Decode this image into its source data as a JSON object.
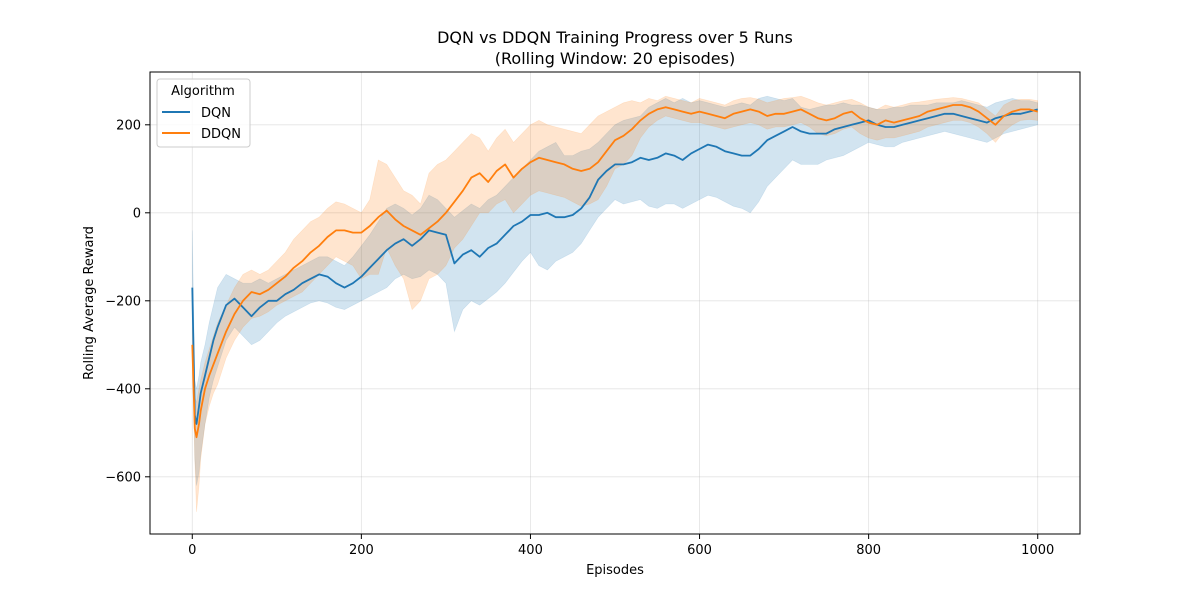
{
  "chart_data": {
    "type": "line",
    "title_line1": "DQN vs DDQN Training Progress over 5 Runs",
    "title_line2": "(Rolling Window: 20 episodes)",
    "xlabel": "Episodes",
    "ylabel": "Rolling Average Reward",
    "xlim": [
      -50,
      1050
    ],
    "ylim": [
      -730,
      320
    ],
    "xticks": [
      0,
      200,
      400,
      600,
      800,
      1000
    ],
    "yticks": [
      -600,
      -400,
      -200,
      0,
      200
    ],
    "xtick_labels": [
      "0",
      "200",
      "400",
      "600",
      "800",
      "1000"
    ],
    "ytick_labels": [
      "−600",
      "−400",
      "−200",
      "0",
      "200"
    ],
    "grid": true,
    "legend": {
      "title": "Algorithm",
      "placement": "top-left"
    },
    "series": [
      {
        "name": "DQN",
        "color": "#1f77b4",
        "x": [
          0,
          3,
          5,
          8,
          10,
          15,
          20,
          25,
          30,
          40,
          50,
          60,
          70,
          80,
          90,
          100,
          110,
          120,
          130,
          140,
          150,
          160,
          170,
          180,
          190,
          200,
          210,
          220,
          230,
          240,
          250,
          260,
          270,
          280,
          290,
          300,
          310,
          320,
          330,
          340,
          350,
          360,
          370,
          380,
          390,
          400,
          410,
          420,
          430,
          440,
          450,
          460,
          470,
          480,
          490,
          500,
          510,
          520,
          530,
          540,
          550,
          560,
          570,
          580,
          590,
          600,
          610,
          620,
          630,
          640,
          650,
          660,
          670,
          680,
          690,
          700,
          710,
          720,
          730,
          740,
          750,
          760,
          770,
          780,
          790,
          800,
          810,
          820,
          830,
          840,
          850,
          860,
          870,
          880,
          890,
          900,
          910,
          920,
          930,
          940,
          950,
          960,
          970,
          980,
          990,
          1000
        ],
        "y": [
          -170,
          -460,
          -480,
          -440,
          -410,
          -370,
          -330,
          -290,
          -260,
          -210,
          -195,
          -215,
          -235,
          -215,
          -200,
          -200,
          -185,
          -175,
          -160,
          -150,
          -140,
          -145,
          -160,
          -170,
          -160,
          -145,
          -125,
          -105,
          -85,
          -70,
          -60,
          -75,
          -60,
          -40,
          -45,
          -50,
          -115,
          -95,
          -85,
          -100,
          -80,
          -70,
          -50,
          -30,
          -20,
          -5,
          -5,
          0,
          -10,
          -10,
          -5,
          10,
          35,
          75,
          95,
          110,
          110,
          115,
          125,
          120,
          125,
          135,
          130,
          120,
          135,
          145,
          155,
          150,
          140,
          135,
          130,
          130,
          145,
          165,
          175,
          185,
          195,
          185,
          180,
          180,
          180,
          190,
          195,
          200,
          205,
          210,
          200,
          195,
          195,
          200,
          205,
          210,
          215,
          220,
          225,
          225,
          220,
          215,
          210,
          205,
          215,
          220,
          225,
          225,
          230,
          235
        ]
      },
      {
        "name": "DDQN",
        "color": "#ff7f0e",
        "x": [
          0,
          3,
          5,
          8,
          10,
          15,
          20,
          25,
          30,
          40,
          50,
          60,
          70,
          80,
          90,
          100,
          110,
          120,
          130,
          140,
          150,
          160,
          170,
          180,
          190,
          200,
          210,
          220,
          230,
          240,
          250,
          260,
          270,
          280,
          290,
          300,
          310,
          320,
          330,
          340,
          350,
          360,
          370,
          380,
          390,
          400,
          410,
          420,
          430,
          440,
          450,
          460,
          470,
          480,
          490,
          500,
          510,
          520,
          530,
          540,
          550,
          560,
          570,
          580,
          590,
          600,
          610,
          620,
          630,
          640,
          650,
          660,
          670,
          680,
          690,
          700,
          710,
          720,
          730,
          740,
          750,
          760,
          770,
          780,
          790,
          800,
          810,
          820,
          830,
          840,
          850,
          860,
          870,
          880,
          890,
          900,
          910,
          920,
          930,
          940,
          950,
          960,
          970,
          980,
          990,
          1000
        ],
        "y": [
          -300,
          -490,
          -510,
          -480,
          -450,
          -400,
          -370,
          -345,
          -320,
          -270,
          -230,
          -200,
          -180,
          -185,
          -175,
          -160,
          -145,
          -125,
          -110,
          -90,
          -75,
          -55,
          -40,
          -40,
          -45,
          -45,
          -30,
          -10,
          5,
          -15,
          -30,
          -40,
          -50,
          -35,
          -20,
          0,
          25,
          50,
          80,
          90,
          70,
          95,
          110,
          80,
          100,
          115,
          125,
          120,
          115,
          110,
          100,
          95,
          100,
          115,
          140,
          165,
          175,
          190,
          210,
          225,
          235,
          240,
          235,
          230,
          225,
          230,
          225,
          220,
          215,
          225,
          230,
          235,
          230,
          220,
          225,
          225,
          230,
          235,
          225,
          215,
          210,
          215,
          225,
          230,
          215,
          205,
          200,
          210,
          205,
          210,
          215,
          220,
          230,
          235,
          240,
          245,
          245,
          240,
          230,
          215,
          200,
          220,
          230,
          235,
          235,
          230
        ]
      }
    ],
    "bands": [
      {
        "series": "DQN",
        "x": [
          0,
          3,
          5,
          8,
          10,
          15,
          20,
          25,
          30,
          40,
          50,
          60,
          70,
          80,
          90,
          100,
          110,
          120,
          130,
          140,
          150,
          160,
          170,
          180,
          190,
          200,
          210,
          220,
          230,
          240,
          250,
          260,
          270,
          280,
          290,
          300,
          310,
          320,
          330,
          340,
          350,
          360,
          370,
          380,
          390,
          400,
          410,
          420,
          430,
          440,
          450,
          460,
          470,
          480,
          490,
          500,
          510,
          520,
          530,
          540,
          550,
          560,
          570,
          580,
          590,
          600,
          610,
          620,
          630,
          640,
          650,
          660,
          670,
          680,
          690,
          700,
          710,
          720,
          730,
          740,
          750,
          760,
          770,
          780,
          790,
          800,
          810,
          820,
          830,
          840,
          850,
          860,
          870,
          880,
          890,
          900,
          910,
          920,
          930,
          940,
          950,
          960,
          970,
          980,
          990,
          1000
        ],
        "upper": [
          -40,
          -380,
          -400,
          -370,
          -340,
          -300,
          -250,
          -210,
          -170,
          -140,
          -150,
          -160,
          -160,
          -150,
          -160,
          -150,
          -140,
          -130,
          -120,
          -110,
          -100,
          -100,
          -110,
          -120,
          -100,
          -75,
          -50,
          -20,
          10,
          20,
          10,
          -5,
          10,
          40,
          30,
          10,
          -10,
          5,
          20,
          10,
          30,
          40,
          60,
          80,
          100,
          120,
          140,
          150,
          160,
          130,
          130,
          140,
          145,
          160,
          180,
          200,
          210,
          215,
          220,
          240,
          250,
          260,
          250,
          260,
          250,
          255,
          250,
          245,
          240,
          245,
          250,
          245,
          260,
          265,
          260,
          255,
          260,
          240,
          235,
          240,
          245,
          245,
          250,
          245,
          245,
          240,
          235,
          235,
          240,
          240,
          245,
          245,
          245,
          250,
          250,
          250,
          255,
          250,
          245,
          240,
          250,
          255,
          260,
          255,
          255,
          250
        ],
        "lower": [
          -200,
          -560,
          -620,
          -590,
          -550,
          -480,
          -420,
          -380,
          -350,
          -290,
          -260,
          -280,
          -300,
          -290,
          -270,
          -250,
          -235,
          -225,
          -215,
          -205,
          -200,
          -205,
          -215,
          -220,
          -210,
          -200,
          -190,
          -180,
          -170,
          -150,
          -140,
          -150,
          -145,
          -130,
          -140,
          -160,
          -270,
          -220,
          -200,
          -210,
          -195,
          -180,
          -160,
          -135,
          -110,
          -90,
          -120,
          -130,
          -110,
          -100,
          -90,
          -70,
          -40,
          -10,
          10,
          30,
          20,
          25,
          30,
          15,
          10,
          20,
          20,
          10,
          20,
          30,
          40,
          35,
          25,
          15,
          10,
          0,
          25,
          60,
          80,
          100,
          120,
          110,
          110,
          110,
          120,
          125,
          130,
          140,
          150,
          160,
          155,
          150,
          150,
          160,
          165,
          170,
          175,
          180,
          185,
          180,
          175,
          170,
          165,
          160,
          170,
          180,
          185,
          190,
          195,
          200
        ]
      },
      {
        "series": "DDQN",
        "x": [
          0,
          3,
          5,
          8,
          10,
          15,
          20,
          25,
          30,
          40,
          50,
          60,
          70,
          80,
          90,
          100,
          110,
          120,
          130,
          140,
          150,
          160,
          170,
          180,
          190,
          200,
          210,
          220,
          230,
          240,
          250,
          260,
          270,
          280,
          290,
          300,
          310,
          320,
          330,
          340,
          350,
          360,
          370,
          380,
          390,
          400,
          410,
          420,
          430,
          440,
          450,
          460,
          470,
          480,
          490,
          500,
          510,
          520,
          530,
          540,
          550,
          560,
          570,
          580,
          590,
          600,
          610,
          620,
          630,
          640,
          650,
          660,
          670,
          680,
          690,
          700,
          710,
          720,
          730,
          740,
          750,
          760,
          770,
          780,
          790,
          800,
          810,
          820,
          830,
          840,
          850,
          860,
          870,
          880,
          890,
          900,
          910,
          920,
          930,
          940,
          950,
          960,
          970,
          980,
          990,
          1000
        ],
        "upper": [
          -260,
          -420,
          -430,
          -400,
          -380,
          -340,
          -310,
          -280,
          -250,
          -210,
          -170,
          -140,
          -130,
          -140,
          -130,
          -110,
          -90,
          -60,
          -40,
          -20,
          -10,
          10,
          25,
          20,
          10,
          0,
          30,
          120,
          110,
          80,
          50,
          40,
          20,
          90,
          110,
          120,
          140,
          160,
          180,
          170,
          140,
          170,
          190,
          160,
          180,
          200,
          210,
          200,
          195,
          190,
          185,
          180,
          200,
          220,
          230,
          240,
          250,
          255,
          250,
          260,
          255,
          265,
          260,
          255,
          250,
          260,
          255,
          250,
          245,
          255,
          260,
          262,
          258,
          250,
          255,
          260,
          262,
          265,
          258,
          250,
          245,
          250,
          255,
          258,
          250,
          240,
          235,
          245,
          240,
          245,
          250,
          252,
          255,
          258,
          260,
          262,
          260,
          255,
          250,
          235,
          220,
          245,
          255,
          258,
          258,
          255
        ],
        "lower": [
          -340,
          -560,
          -680,
          -620,
          -560,
          -480,
          -440,
          -410,
          -390,
          -330,
          -290,
          -260,
          -240,
          -235,
          -225,
          -210,
          -200,
          -190,
          -180,
          -160,
          -140,
          -120,
          -100,
          -110,
          -120,
          -150,
          -140,
          -140,
          -80,
          -120,
          -150,
          -220,
          -200,
          -150,
          -140,
          -120,
          -80,
          -60,
          -30,
          0,
          0,
          20,
          30,
          0,
          20,
          40,
          50,
          45,
          40,
          35,
          25,
          15,
          20,
          30,
          60,
          100,
          110,
          130,
          170,
          195,
          210,
          220,
          215,
          210,
          205,
          205,
          200,
          195,
          190,
          195,
          200,
          205,
          200,
          190,
          195,
          195,
          200,
          205,
          195,
          180,
          175,
          180,
          190,
          195,
          180,
          170,
          165,
          170,
          170,
          175,
          180,
          185,
          195,
          200,
          205,
          210,
          210,
          205,
          195,
          180,
          160,
          185,
          200,
          210,
          212,
          210
        ]
      }
    ]
  }
}
